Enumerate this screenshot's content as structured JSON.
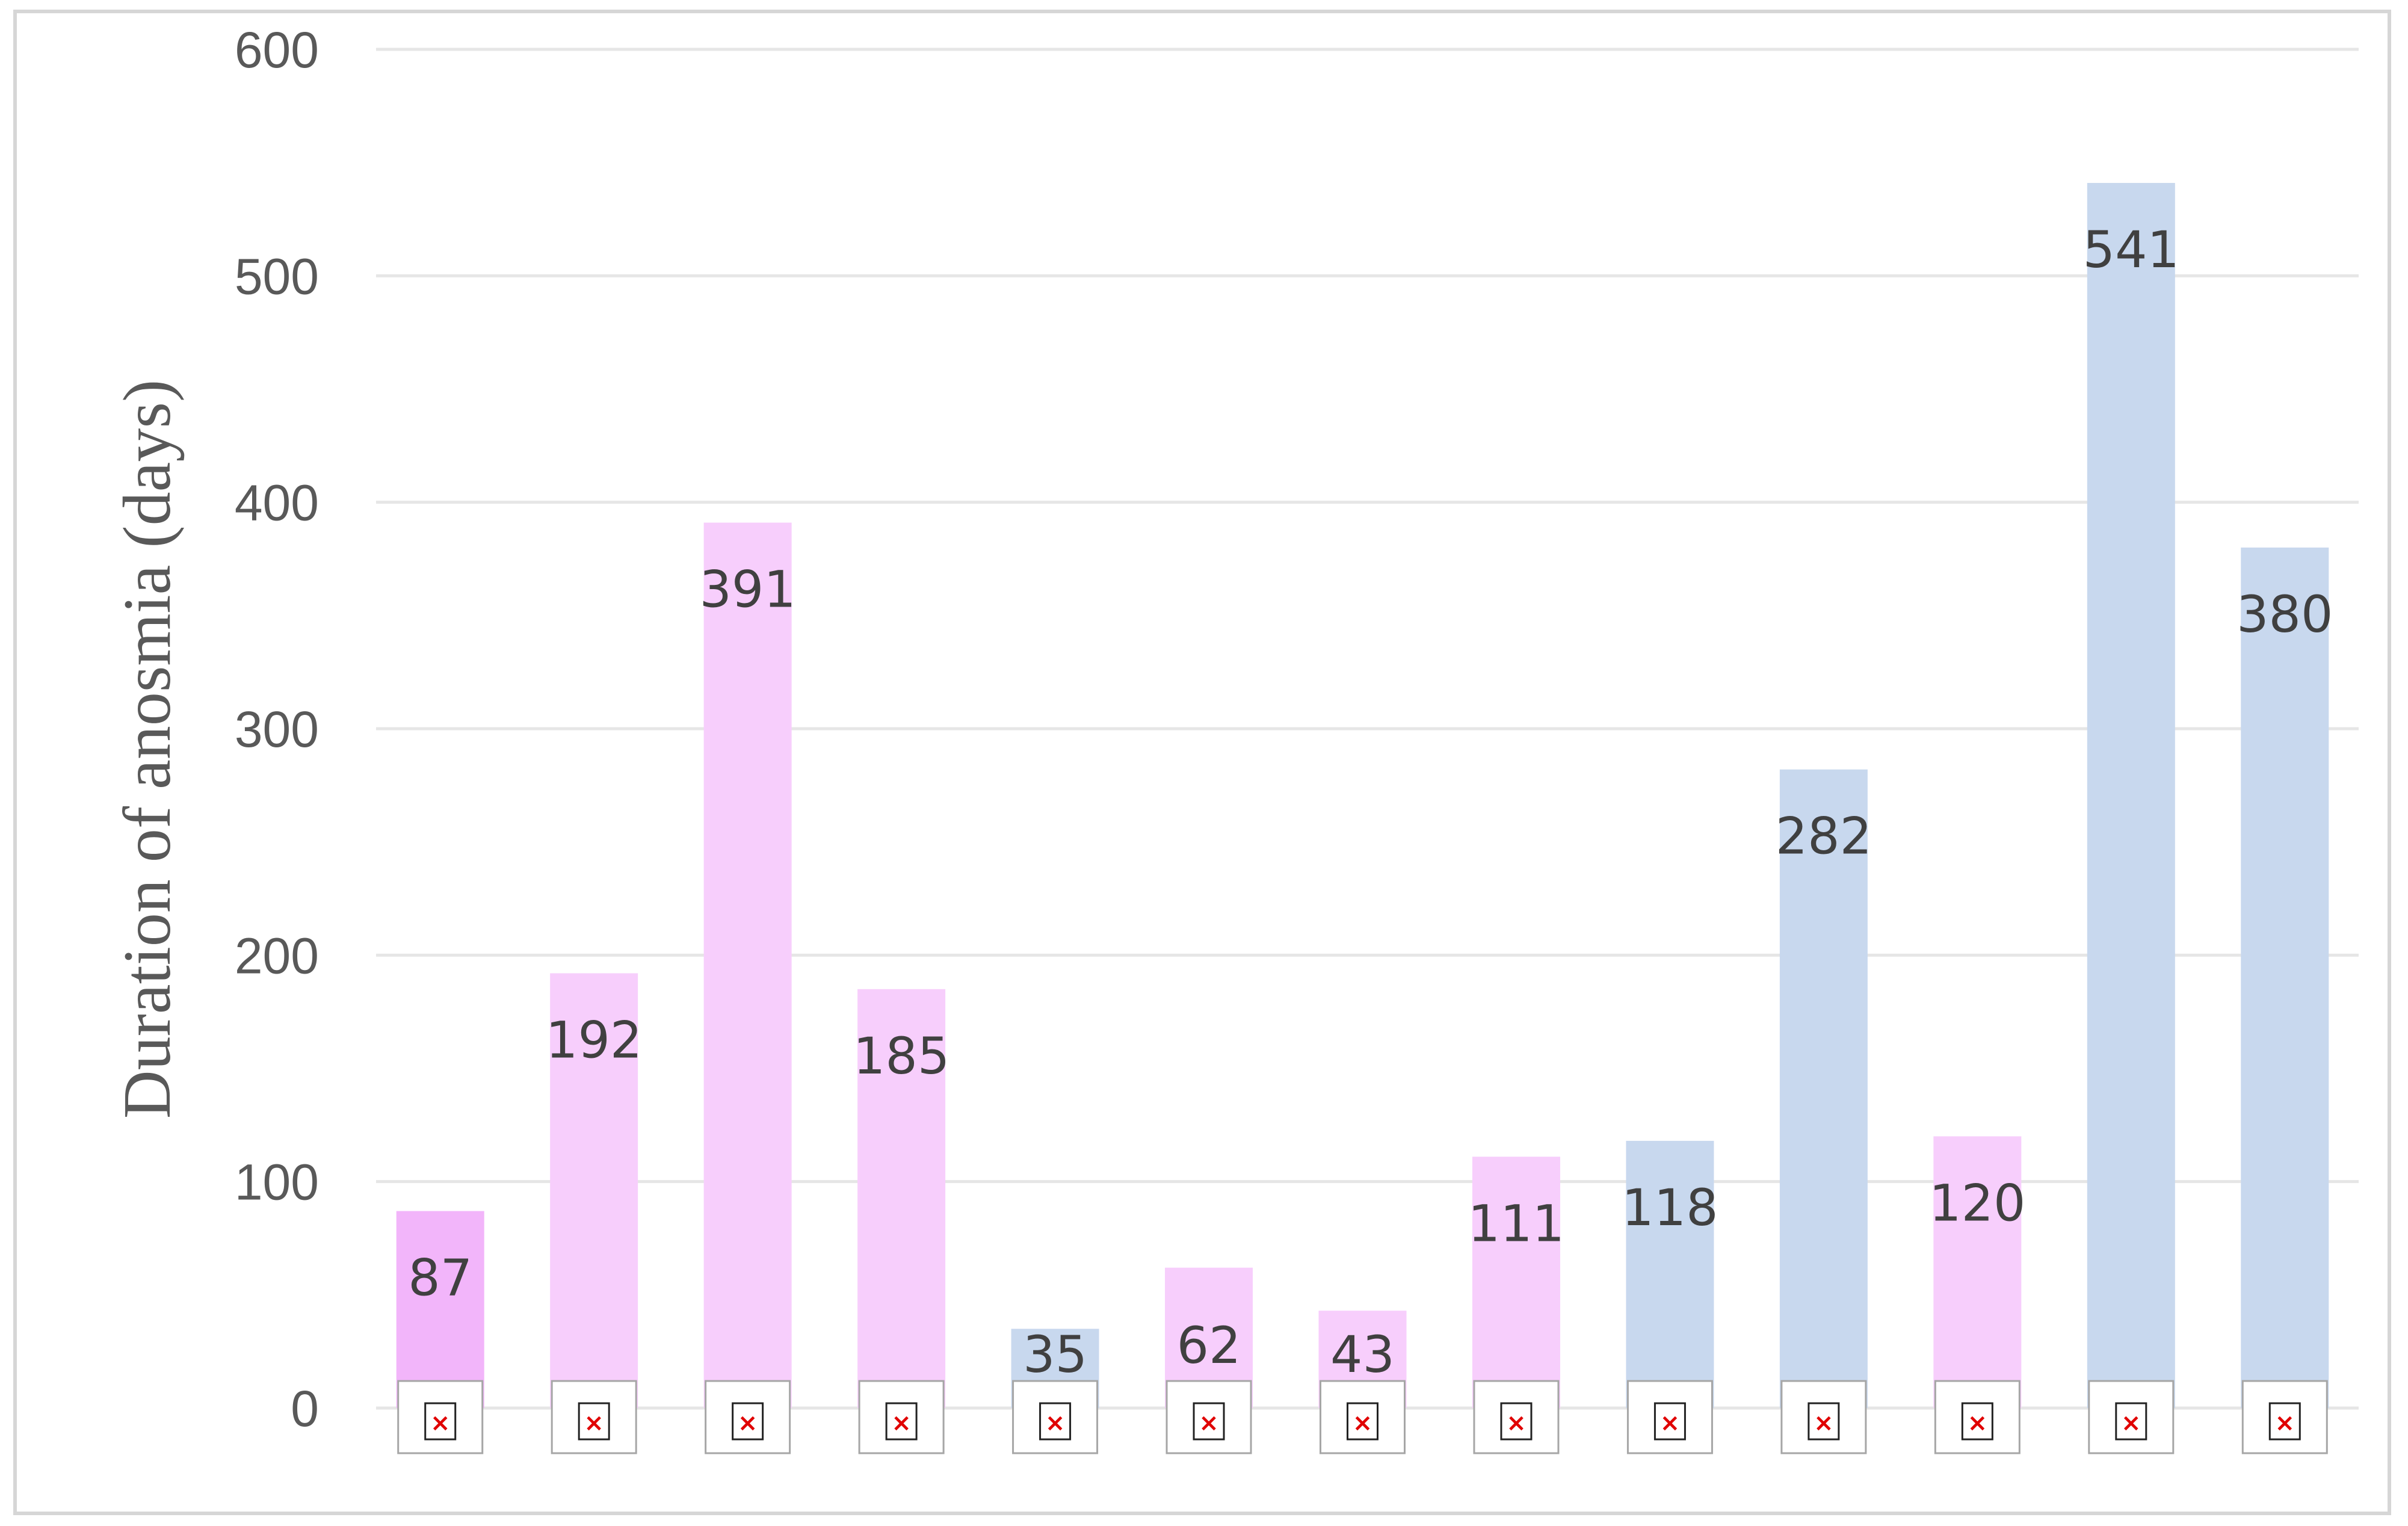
{
  "chart_data": {
    "type": "bar",
    "title": "",
    "xlabel": "",
    "ylabel": "Duration of anosmia (days)",
    "ylim": [
      0,
      600
    ],
    "yticks": [
      0,
      100,
      200,
      300,
      400,
      500,
      600
    ],
    "grid": true,
    "legend": "none",
    "categories": [
      "",
      "",
      "",
      "",
      "",
      "",
      "",
      "",
      "",
      "",
      "",
      "",
      ""
    ],
    "values": [
      87,
      192,
      391,
      185,
      35,
      62,
      43,
      111,
      118,
      282,
      120,
      541,
      380
    ],
    "bar_colors": [
      "#f2b5fa",
      "#f7cefc",
      "#f7cefc",
      "#f7cefc",
      "#c8d8ee",
      "#f7cefc",
      "#f7cefc",
      "#f7cefc",
      "#c8d8ee",
      "#c8d8ee",
      "#f7cefc",
      "#c8d8ee",
      "#c8d8ee"
    ],
    "category_marker_icon": "broken-image-icon"
  }
}
